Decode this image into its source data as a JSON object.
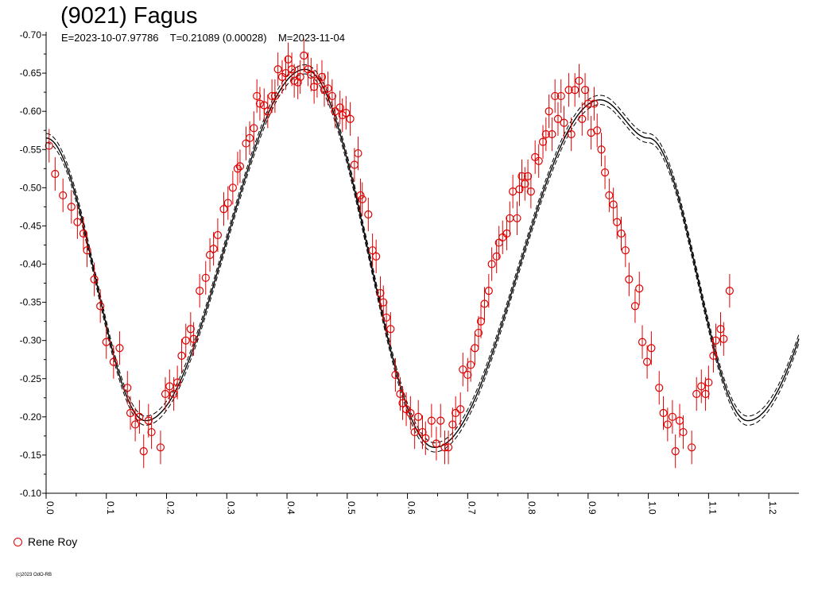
{
  "title": "(9021) Fagus",
  "subtitle": "E=2023-10-07.97786    T=0.21089 (0.00028)    M=2023-11-04",
  "legend": {
    "label": "Rene Roy",
    "color": "#e00000"
  },
  "copyright": "(c)2023 OdO-RB",
  "chart_data": {
    "type": "scatter",
    "title": "(9021) Fagus",
    "xlabel": "",
    "ylabel": "",
    "xlim": [
      0.0,
      1.25
    ],
    "ylim": [
      -0.7,
      -0.1
    ],
    "y_inverted": true,
    "x_ticks": [
      "0.0",
      "0.1",
      "0.2",
      "0.3",
      "0.4",
      "0.5",
      "0.6",
      "0.7",
      "0.8",
      "0.9",
      "1.0",
      "1.1",
      "1.2"
    ],
    "y_ticks": [
      "-0.70",
      "-0.65",
      "-0.60",
      "-0.55",
      "-0.50",
      "-0.45",
      "-0.40",
      "-0.35",
      "-0.30",
      "-0.25",
      "-0.20",
      "-0.15",
      "-0.10"
    ],
    "grid": false,
    "legend_position": "bottom-left",
    "series": [
      {
        "name": "Rene Roy",
        "color": "#e00000",
        "marker": "open-circle",
        "error": 0.022,
        "points": [
          [
            0.005,
            -0.555
          ],
          [
            0.015,
            -0.518
          ],
          [
            0.028,
            -0.49
          ],
          [
            0.042,
            -0.475
          ],
          [
            0.052,
            -0.455
          ],
          [
            0.062,
            -0.44
          ],
          [
            0.068,
            -0.418
          ],
          [
            0.08,
            -0.38
          ],
          [
            0.09,
            -0.345
          ],
          [
            0.1,
            -0.298
          ],
          [
            0.112,
            -0.272
          ],
          [
            0.122,
            -0.29
          ],
          [
            0.135,
            -0.238
          ],
          [
            0.14,
            -0.205
          ],
          [
            0.148,
            -0.19
          ],
          [
            0.155,
            -0.2
          ],
          [
            0.162,
            -0.155
          ],
          [
            0.17,
            -0.195
          ],
          [
            0.175,
            -0.18
          ],
          [
            0.19,
            -0.16
          ],
          [
            0.198,
            -0.23
          ],
          [
            0.205,
            -0.24
          ],
          [
            0.212,
            -0.23
          ],
          [
            0.218,
            -0.245
          ],
          [
            0.225,
            -0.28
          ],
          [
            0.232,
            -0.3
          ],
          [
            0.24,
            -0.315
          ],
          [
            0.245,
            -0.302
          ],
          [
            0.255,
            -0.365
          ],
          [
            0.265,
            -0.382
          ],
          [
            0.272,
            -0.412
          ],
          [
            0.278,
            -0.42
          ],
          [
            0.285,
            -0.438
          ],
          [
            0.295,
            -0.472
          ],
          [
            0.302,
            -0.48
          ],
          [
            0.31,
            -0.5
          ],
          [
            0.318,
            -0.525
          ],
          [
            0.322,
            -0.528
          ],
          [
            0.332,
            -0.558
          ],
          [
            0.338,
            -0.565
          ],
          [
            0.345,
            -0.578
          ],
          [
            0.35,
            -0.62
          ],
          [
            0.355,
            -0.61
          ],
          [
            0.362,
            -0.608
          ],
          [
            0.368,
            -0.6
          ],
          [
            0.375,
            -0.62
          ],
          [
            0.38,
            -0.62
          ],
          [
            0.385,
            -0.655
          ],
          [
            0.392,
            -0.645
          ],
          [
            0.398,
            -0.65
          ],
          [
            0.402,
            -0.668
          ],
          [
            0.408,
            -0.655
          ],
          [
            0.412,
            -0.64
          ],
          [
            0.418,
            -0.638
          ],
          [
            0.422,
            -0.645
          ],
          [
            0.428,
            -0.673
          ],
          [
            0.435,
            -0.655
          ],
          [
            0.44,
            -0.648
          ],
          [
            0.445,
            -0.632
          ],
          [
            0.45,
            -0.64
          ],
          [
            0.458,
            -0.645
          ],
          [
            0.462,
            -0.628
          ],
          [
            0.468,
            -0.63
          ],
          [
            0.475,
            -0.62
          ],
          [
            0.48,
            -0.6
          ],
          [
            0.488,
            -0.605
          ],
          [
            0.492,
            -0.595
          ],
          [
            0.498,
            -0.598
          ],
          [
            0.505,
            -0.59
          ],
          [
            0.512,
            -0.53
          ],
          [
            0.518,
            -0.545
          ],
          [
            0.522,
            -0.49
          ],
          [
            0.525,
            -0.485
          ],
          [
            0.535,
            -0.465
          ],
          [
            0.542,
            -0.418
          ],
          [
            0.548,
            -0.41
          ],
          [
            0.555,
            -0.362
          ],
          [
            0.56,
            -0.35
          ],
          [
            0.565,
            -0.33
          ],
          [
            0.572,
            -0.315
          ],
          [
            0.58,
            -0.255
          ],
          [
            0.588,
            -0.23
          ],
          [
            0.592,
            -0.218
          ],
          [
            0.598,
            -0.21
          ],
          [
            0.605,
            -0.205
          ],
          [
            0.612,
            -0.18
          ],
          [
            0.618,
            -0.2
          ],
          [
            0.625,
            -0.18
          ],
          [
            0.63,
            -0.172
          ],
          [
            0.64,
            -0.195
          ],
          [
            0.648,
            -0.165
          ],
          [
            0.655,
            -0.195
          ],
          [
            0.662,
            -0.16
          ],
          [
            0.668,
            -0.16
          ],
          [
            0.675,
            -0.19
          ],
          [
            0.68,
            -0.205
          ],
          [
            0.688,
            -0.21
          ],
          [
            0.692,
            -0.262
          ],
          [
            0.7,
            -0.255
          ],
          [
            0.705,
            -0.268
          ],
          [
            0.712,
            -0.29
          ],
          [
            0.718,
            -0.31
          ],
          [
            0.722,
            -0.325
          ],
          [
            0.728,
            -0.348
          ],
          [
            0.735,
            -0.365
          ],
          [
            0.74,
            -0.4
          ],
          [
            0.748,
            -0.41
          ],
          [
            0.752,
            -0.428
          ],
          [
            0.758,
            -0.435
          ],
          [
            0.765,
            -0.44
          ],
          [
            0.77,
            -0.46
          ],
          [
            0.775,
            -0.495
          ],
          [
            0.782,
            -0.46
          ],
          [
            0.786,
            -0.498
          ],
          [
            0.79,
            -0.515
          ],
          [
            0.795,
            -0.505
          ],
          [
            0.8,
            -0.515
          ],
          [
            0.805,
            -0.495
          ],
          [
            0.812,
            -0.54
          ],
          [
            0.818,
            -0.535
          ],
          [
            0.825,
            -0.56
          ],
          [
            0.83,
            -0.57
          ],
          [
            0.835,
            -0.6
          ],
          [
            0.84,
            -0.57
          ],
          [
            0.845,
            -0.62
          ],
          [
            0.85,
            -0.59
          ],
          [
            0.855,
            -0.62
          ],
          [
            0.86,
            -0.585
          ],
          [
            0.868,
            -0.628
          ],
          [
            0.872,
            -0.57
          ],
          [
            0.878,
            -0.628
          ],
          [
            0.885,
            -0.64
          ],
          [
            0.89,
            -0.59
          ],
          [
            0.895,
            -0.628
          ],
          [
            0.9,
            -0.61
          ],
          [
            0.905,
            -0.572
          ],
          [
            0.91,
            -0.61
          ],
          [
            0.915,
            -0.575
          ],
          [
            0.922,
            -0.55
          ],
          [
            0.928,
            -0.52
          ],
          [
            0.935,
            -0.49
          ],
          [
            0.942,
            -0.478
          ],
          [
            0.948,
            -0.455
          ],
          [
            0.955,
            -0.44
          ],
          [
            0.962,
            -0.418
          ],
          [
            0.968,
            -0.38
          ],
          [
            0.978,
            -0.345
          ],
          [
            0.985,
            -0.368
          ],
          [
            0.99,
            -0.298
          ],
          [
            0.998,
            -0.272
          ],
          [
            1.005,
            -0.29
          ],
          [
            1.018,
            -0.238
          ],
          [
            1.025,
            -0.205
          ],
          [
            1.032,
            -0.19
          ],
          [
            1.04,
            -0.2
          ],
          [
            1.045,
            -0.155
          ],
          [
            1.052,
            -0.195
          ],
          [
            1.058,
            -0.18
          ],
          [
            1.072,
            -0.16
          ],
          [
            1.08,
            -0.23
          ],
          [
            1.088,
            -0.24
          ],
          [
            1.095,
            -0.23
          ],
          [
            1.1,
            -0.245
          ],
          [
            1.108,
            -0.28
          ],
          [
            1.112,
            -0.3
          ],
          [
            1.12,
            -0.315
          ],
          [
            1.125,
            -0.302
          ],
          [
            1.135,
            -0.365
          ]
        ]
      }
    ],
    "fit": {
      "curves": [
        "solid",
        "dashed-upper",
        "dashed-lower"
      ],
      "period_phase": [
        0.0,
        1.0
      ],
      "extrema": [
        {
          "phase": 0.0,
          "value": -0.565
        },
        {
          "phase": 0.165,
          "value": -0.195
        },
        {
          "phase": 0.43,
          "value": -0.655
        },
        {
          "phase": 0.645,
          "value": -0.16
        },
        {
          "phase": 0.92,
          "value": -0.615
        },
        {
          "phase": 1.0,
          "value": -0.565
        }
      ]
    }
  }
}
